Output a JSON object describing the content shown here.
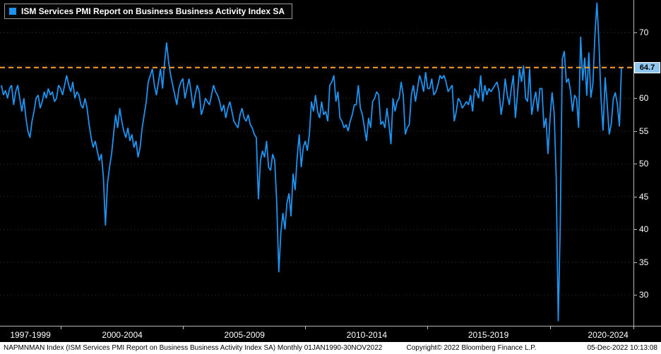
{
  "legend": {
    "series_label": "ISM Services PMI Report on Business Business Activity Index SA"
  },
  "last_value_label": "64.7",
  "colors": {
    "background": "#000000",
    "line": "#1f93f0",
    "last_value_line": "#ffa028",
    "last_value_box_bg": "#8fc6f0",
    "axis_text": "#ffffff"
  },
  "status_bar": {
    "left": "NAPMNMAN Index (ISM Services PMI Report on Business Business Activity Index SA)  Monthly 01JAN1990-30NOV2022",
    "copyright": "Copyright© 2022 Bloomberg Finance L.P.",
    "datetime": "05-Dec-2022 10:13:08"
  },
  "chart_data": {
    "type": "line",
    "title": "ISM Services PMI Report on Business Business Activity Index SA",
    "frequency": "monthly",
    "x_start": "1997-07",
    "x_end": "2022-11",
    "ylim": [
      25.3,
      75
    ],
    "yticks": [
      30,
      35,
      40,
      45,
      50,
      55,
      60,
      65,
      70
    ],
    "x_axis_labels": [
      "1997-1999",
      "2000-2004",
      "2005-2009",
      "2010-2014",
      "2015-2019",
      "2020-2024"
    ],
    "grid": "dotted-horizontal",
    "legend_position": "top-left",
    "last_value": 64.7,
    "annotations": [
      {
        "type": "hline",
        "value": 64.7,
        "style": "dashed",
        "color": "#ffa028",
        "label": "64.7"
      }
    ],
    "series": [
      {
        "name": "ISM Services PMI Report on Business Business Activity Index SA",
        "color": "#1f93f0",
        "values": [
          62.0,
          60.5,
          61.2,
          60.0,
          61.5,
          62.0,
          59.0,
          61.0,
          62.0,
          60.0,
          58.0,
          60.0,
          57.0,
          55.0,
          54.0,
          56.5,
          58.0,
          60.0,
          60.5,
          58.5,
          59.5,
          61.0,
          60.0,
          61.5,
          60.5,
          61.0,
          59.5,
          60.0,
          62.0,
          61.5,
          60.5,
          62.0,
          63.5,
          62.0,
          61.0,
          62.5,
          60.0,
          61.0,
          60.5,
          59.0,
          58.5,
          60.0,
          58.5,
          56.0,
          54.0,
          52.5,
          53.5,
          52.0,
          50.5,
          51.5,
          48.0,
          40.6,
          47.0,
          49.5,
          51.5,
          54.5,
          57.5,
          55.5,
          58.5,
          56.5,
          55.0,
          54.0,
          55.5,
          53.5,
          54.5,
          52.5,
          53.5,
          51.0,
          52.5,
          55.5,
          57.5,
          59.5,
          62.5,
          63.5,
          64.5,
          62.0,
          60.5,
          62.5,
          64.5,
          61.5,
          65.5,
          68.5,
          65.5,
          63.5,
          62.0,
          60.5,
          59.0,
          61.5,
          62.5,
          63.0,
          60.0,
          61.5,
          63.0,
          61.0,
          58.5,
          60.5,
          62.0,
          61.0,
          57.5,
          58.5,
          60.0,
          59.5,
          59.0,
          60.5,
          62.0,
          61.0,
          60.5,
          59.5,
          58.0,
          59.0,
          57.0,
          58.5,
          59.5,
          58.0,
          56.5,
          56.0,
          55.5,
          57.5,
          58.5,
          57.0,
          56.5,
          57.5,
          56.0,
          55.5,
          54.5,
          54.0,
          44.6,
          50.5,
          52.0,
          51.0,
          53.5,
          49.5,
          49.0,
          51.5,
          50.5,
          44.0,
          33.5,
          39.5,
          42.5,
          40.0,
          44.0,
          45.5,
          42.0,
          48.5,
          46.0,
          51.0,
          54.5,
          49.5,
          52.5,
          53.5,
          52.0,
          54.5,
          59.5,
          58.0,
          60.5,
          58.0,
          57.0,
          59.5,
          57.5,
          58.0,
          56.5,
          62.0,
          62.5,
          63.5,
          59.5,
          61.0,
          57.0,
          56.5,
          55.5,
          56.0,
          55.0,
          56.5,
          57.5,
          59.0,
          59.0,
          62.0,
          58.5,
          57.5,
          55.5,
          53.5,
          57.0,
          55.5,
          59.5,
          60.0,
          61.0,
          60.5,
          56.0,
          56.5,
          55.5,
          58.5,
          56.0,
          53.0,
          60.0,
          58.0,
          59.5,
          60.0,
          62.5,
          60.5,
          54.5,
          55.5,
          56.0,
          60.5,
          62.0,
          59.5,
          61.5,
          63.5,
          62.5,
          61.0,
          64.0,
          61.5,
          61.5,
          63.0,
          60.5,
          61.0,
          62.0,
          63.5,
          63.0,
          63.5,
          62.5,
          61.0,
          61.5,
          62.0,
          56.5,
          58.0,
          60.0,
          59.5,
          58.5,
          59.0,
          59.5,
          59.0,
          60.5,
          58.0,
          61.5,
          61.0,
          60.0,
          63.5,
          59.5,
          62.0,
          60.5,
          61.5,
          61.0,
          61.5,
          62.0,
          62.5,
          61.0,
          57.5,
          59.5,
          63.0,
          60.5,
          59.0,
          61.5,
          63.5,
          57.0,
          60.5,
          64.5,
          62.5,
          65.0,
          60.0,
          59.5,
          64.5,
          57.5,
          59.5,
          61.0,
          58.0,
          61.5,
          61.5,
          55.5,
          57.0,
          51.5,
          57.0,
          60.9,
          57.8,
          48.0,
          26.0,
          41.0,
          66.0,
          67.2,
          62.4,
          63.0,
          61.2,
          58.0,
          60.5,
          59.9,
          55.5,
          69.4,
          62.7,
          66.2,
          60.4,
          67.0,
          60.1,
          62.3,
          69.8,
          74.6,
          68.3,
          59.9,
          55.1,
          63.2,
          59.1,
          54.5,
          56.1,
          59.9,
          60.9,
          59.1,
          55.7,
          64.7
        ]
      }
    ]
  }
}
